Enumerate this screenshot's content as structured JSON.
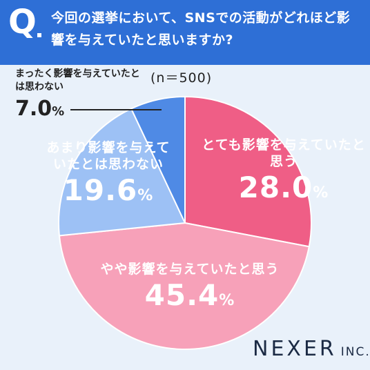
{
  "header": {
    "q_mark": "Q",
    "question": "今回の選挙において、SNSでの活動がどれほど影響を与えていたと思いますか?"
  },
  "sample": "(n＝500)",
  "brand": {
    "name": "NEXER",
    "suffix": "INC."
  },
  "chart_data": {
    "type": "pie",
    "title": "",
    "start": "top",
    "direction": "clockwise",
    "slices": [
      {
        "label": "とても影響を与えていたと思う",
        "value": 28.0,
        "display": "28.0",
        "color": "#ef5e86"
      },
      {
        "label": "やや影響を与えていたと思う",
        "value": 45.4,
        "display": "45.4",
        "color": "#f7a1b9"
      },
      {
        "label": "あまり影響を与えていたとは思わない",
        "value": 19.6,
        "display": "19.6",
        "color": "#9dc1f5"
      },
      {
        "label": "まったく影響を与えていたとは思わない",
        "value": 7.0,
        "display": "7.0",
        "color": "#4f8ae5"
      }
    ],
    "unit": "%"
  }
}
